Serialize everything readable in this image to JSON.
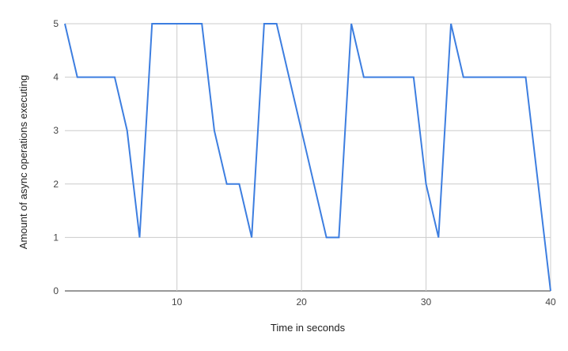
{
  "chart_data": {
    "type": "line",
    "title": "",
    "xlabel": "Time in seconds",
    "ylabel": "Amount of async operations executing",
    "xlim": [
      1,
      40
    ],
    "ylim": [
      0,
      5
    ],
    "x_ticks": [
      10,
      20,
      30,
      40
    ],
    "y_ticks": [
      0,
      1,
      2,
      3,
      4,
      5
    ],
    "grid": true,
    "legend": "none",
    "series": [
      {
        "color": "#3d7ee0",
        "x": [
          1,
          2,
          3,
          4,
          5,
          6,
          7,
          8,
          9,
          10,
          11,
          12,
          13,
          14,
          15,
          16,
          17,
          18,
          19,
          20,
          21,
          22,
          23,
          24,
          25,
          26,
          27,
          28,
          29,
          30,
          31,
          32,
          33,
          34,
          35,
          36,
          37,
          38,
          39,
          40
        ],
        "y": [
          5,
          4,
          4,
          4,
          4,
          3,
          1,
          5,
          5,
          5,
          5,
          5,
          3,
          2,
          2,
          1,
          5,
          5,
          4,
          3,
          2,
          1,
          1,
          5,
          4,
          4,
          4,
          4,
          4,
          2,
          1,
          5,
          4,
          4,
          4,
          4,
          4,
          4,
          2,
          0
        ]
      }
    ]
  }
}
